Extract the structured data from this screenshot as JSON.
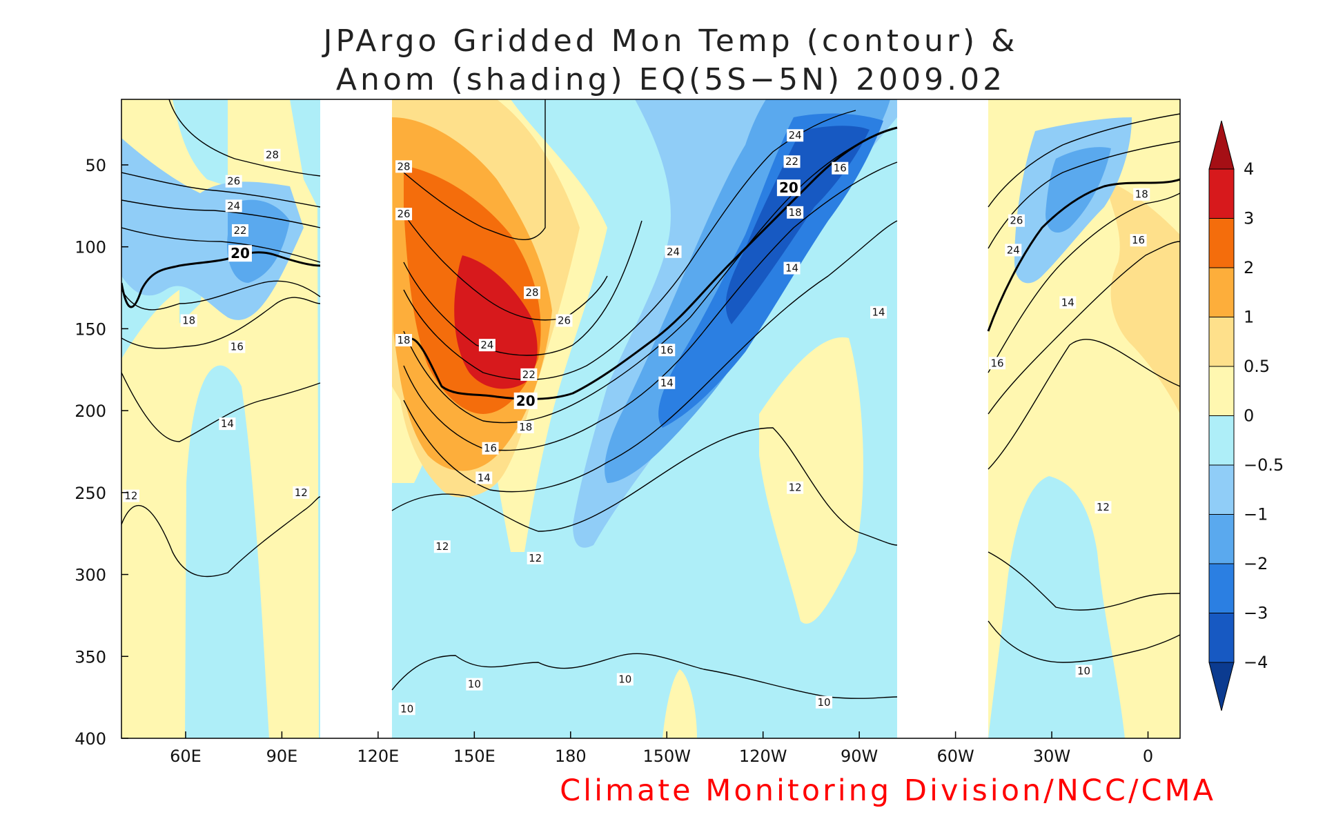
{
  "chart_data": {
    "type": "heatmap",
    "title_lines": [
      "JPArgo Gridded Mon Temp (contour) &",
      "Anom (shading) EQ(5S−5N) 2009.02"
    ],
    "credit": "Climate Monitoring Division/NCC/CMA",
    "x_ticks": [
      "60E",
      "90E",
      "120E",
      "150E",
      "180",
      "150W",
      "120W",
      "90W",
      "60W",
      "30W",
      "0"
    ],
    "x_tick_values": [
      60,
      90,
      120,
      150,
      180,
      210,
      240,
      270,
      300,
      330,
      360
    ],
    "y_ticks": [
      "50",
      "100",
      "150",
      "200",
      "250",
      "300",
      "350",
      "400"
    ],
    "y_tick_values": [
      50,
      100,
      150,
      200,
      250,
      300,
      350,
      400
    ],
    "xlim": [
      40,
      370
    ],
    "ylim": [
      10,
      400
    ],
    "y_reversed": true,
    "missing_ranges_x": [
      [
        102,
        125
      ],
      [
        280,
        310
      ]
    ],
    "colorbar": {
      "labels": [
        "4",
        "3",
        "2",
        "1",
        "0.5",
        "0",
        "−0.5",
        "−1",
        "−2",
        "−3",
        "−4"
      ],
      "colors": [
        "#a50f15",
        "#d7191c",
        "#f46d0c",
        "#fdae3b",
        "#fee08b",
        "#fff7b0",
        "#aeeef8",
        "#90cdf7",
        "#5aa9ee",
        "#2b7fe2",
        "#1759c2",
        "#0b3b90"
      ]
    },
    "contour_labels": [
      {
        "text": "28",
        "x": 87,
        "y": 44
      },
      {
        "text": "26",
        "x": 75,
        "y": 60
      },
      {
        "text": "24",
        "x": 75,
        "y": 75
      },
      {
        "text": "22",
        "x": 77,
        "y": 90
      },
      {
        "text": "20",
        "x": 77,
        "y": 104,
        "bold": true
      },
      {
        "text": "18",
        "x": 61,
        "y": 145
      },
      {
        "text": "16",
        "x": 76,
        "y": 161
      },
      {
        "text": "14",
        "x": 73,
        "y": 208
      },
      {
        "text": "12",
        "x": 43,
        "y": 252
      },
      {
        "text": "12",
        "x": 96,
        "y": 250
      },
      {
        "text": "28",
        "x": 128,
        "y": 51
      },
      {
        "text": "26",
        "x": 128,
        "y": 80
      },
      {
        "text": "18",
        "x": 128,
        "y": 157
      },
      {
        "text": "28",
        "x": 168,
        "y": 128
      },
      {
        "text": "26",
        "x": 178,
        "y": 145
      },
      {
        "text": "24",
        "x": 154,
        "y": 160
      },
      {
        "text": "22",
        "x": 167,
        "y": 178
      },
      {
        "text": "20",
        "x": 166,
        "y": 194,
        "bold": true
      },
      {
        "text": "18",
        "x": 166,
        "y": 210
      },
      {
        "text": "16",
        "x": 155,
        "y": 223
      },
      {
        "text": "14",
        "x": 153,
        "y": 241
      },
      {
        "text": "12",
        "x": 140,
        "y": 283
      },
      {
        "text": "12",
        "x": 169,
        "y": 290
      },
      {
        "text": "10",
        "x": 150,
        "y": 367
      },
      {
        "text": "10",
        "x": 129,
        "y": 382
      },
      {
        "text": "24",
        "x": 250,
        "y": 32
      },
      {
        "text": "22",
        "x": 249,
        "y": 48
      },
      {
        "text": "20",
        "x": 248,
        "y": 64,
        "bold": true
      },
      {
        "text": "16",
        "x": 264,
        "y": 52
      },
      {
        "text": "18",
        "x": 250,
        "y": 79
      },
      {
        "text": "24",
        "x": 212,
        "y": 103
      },
      {
        "text": "16",
        "x": 210,
        "y": 163
      },
      {
        "text": "14",
        "x": 210,
        "y": 183
      },
      {
        "text": "14",
        "x": 249,
        "y": 113
      },
      {
        "text": "14",
        "x": 276,
        "y": 140
      },
      {
        "text": "12",
        "x": 250,
        "y": 247
      },
      {
        "text": "10",
        "x": 197,
        "y": 364
      },
      {
        "text": "10",
        "x": 259,
        "y": 378
      },
      {
        "text": "18",
        "x": 358,
        "y": 68
      },
      {
        "text": "16",
        "x": 357,
        "y": 96
      },
      {
        "text": "26",
        "x": 319,
        "y": 84
      },
      {
        "text": "24",
        "x": 318,
        "y": 102
      },
      {
        "text": "14",
        "x": 335,
        "y": 134
      },
      {
        "text": "16",
        "x": 313,
        "y": 171
      },
      {
        "text": "12",
        "x": 346,
        "y": 259
      },
      {
        "text": "10",
        "x": 340,
        "y": 359
      }
    ]
  }
}
